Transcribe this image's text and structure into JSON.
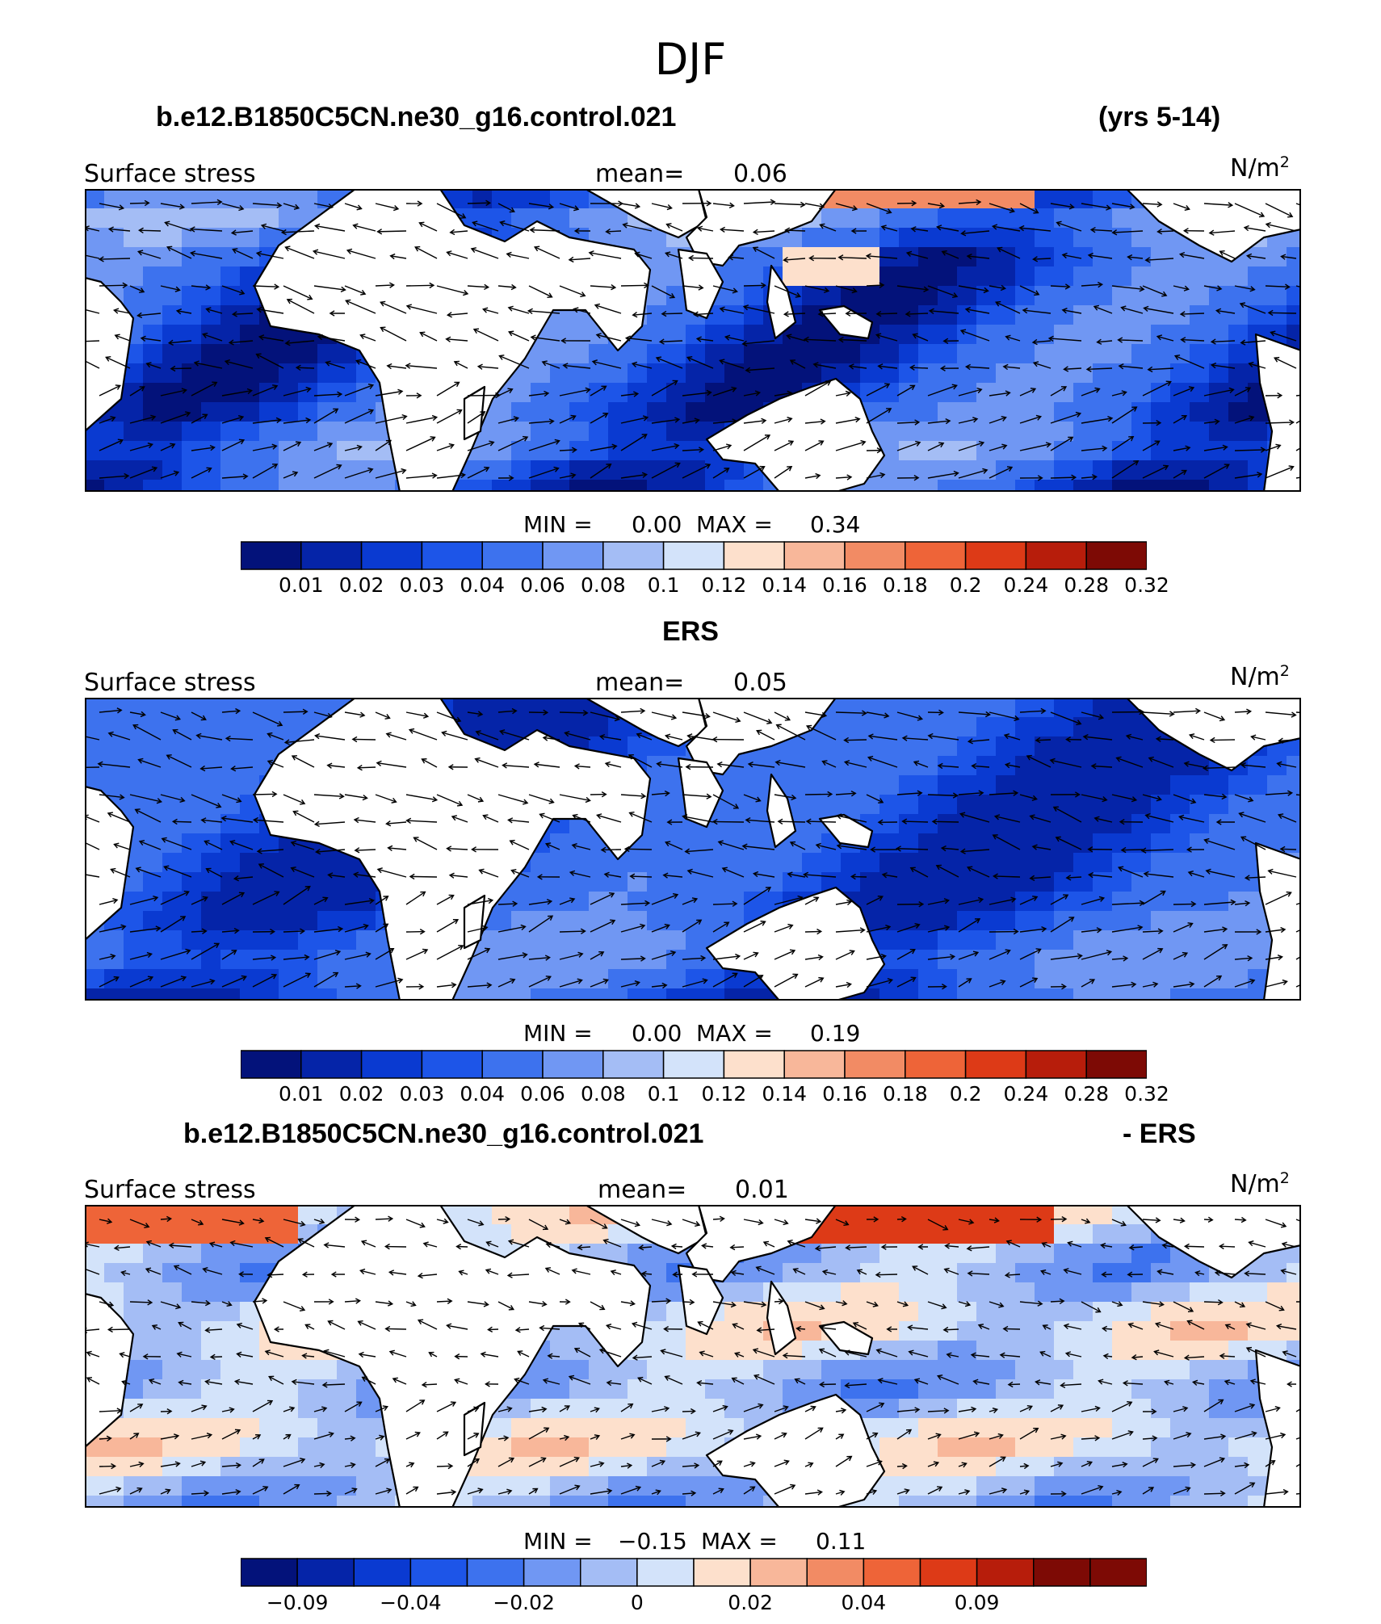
{
  "title": "DJF",
  "panels": [
    {
      "header_left": "b.e12.B1850C5CN.ne30_g16.control.021",
      "header_right": "(yrs 5-14)",
      "variable": "Surface stress",
      "mean_label": "mean=",
      "mean_value": "0.06",
      "units": "N/m",
      "units_sup": "2",
      "min_label": "MIN =",
      "min_value": "0.00",
      "max_label": "MAX =",
      "max_value": "0.34",
      "colorbar_labels": [
        "0.01",
        "0.02",
        "0.03",
        "0.04",
        "0.06",
        "0.08",
        "0.1",
        "0.12",
        "0.14",
        "0.16",
        "0.18",
        "0.2",
        "0.24",
        "0.28",
        "0.32"
      ],
      "colors": [
        "#03127a",
        "#0524a8",
        "#0a3ad1",
        "#1d55e8",
        "#3d72ee",
        "#7097f3",
        "#a4bdf5",
        "#d3e3fa",
        "#fde0cc",
        "#f8b79a",
        "#f28b64",
        "#ee6438",
        "#dd3a17",
        "#b71d0b",
        "#7d0a05"
      ],
      "field": "abs"
    },
    {
      "header_left": "ERS",
      "header_right": "",
      "variable": "Surface stress",
      "mean_label": "mean=",
      "mean_value": "0.05",
      "units": "N/m",
      "units_sup": "2",
      "min_label": "MIN =",
      "min_value": "0.00",
      "max_label": "MAX =",
      "max_value": "0.19",
      "colorbar_labels": [
        "0.01",
        "0.02",
        "0.03",
        "0.04",
        "0.06",
        "0.08",
        "0.1",
        "0.12",
        "0.14",
        "0.16",
        "0.18",
        "0.2",
        "0.24",
        "0.28",
        "0.32"
      ],
      "colors": [
        "#03127a",
        "#0524a8",
        "#0a3ad1",
        "#1d55e8",
        "#3d72ee",
        "#7097f3",
        "#a4bdf5",
        "#d3e3fa",
        "#fde0cc",
        "#f8b79a",
        "#f28b64",
        "#ee6438",
        "#dd3a17",
        "#b71d0b",
        "#7d0a05"
      ],
      "field": "obs"
    },
    {
      "header_left": "b.e12.B1850C5CN.ne30_g16.control.021",
      "header_right": "- ERS",
      "variable": "Surface stress",
      "mean_label": "mean=",
      "mean_value": "0.01",
      "units": "N/m",
      "units_sup": "2",
      "min_label": "MIN =",
      "min_value": "−0.15",
      "max_label": "MAX =",
      "max_value": "0.11",
      "colorbar_labels": [
        "−0.09",
        "−0.04",
        "−0.02",
        "0",
        "0.02",
        "0.04",
        "0.09"
      ],
      "colors": [
        "#03127a",
        "#0524a8",
        "#0a3ad1",
        "#1d55e8",
        "#3d72ee",
        "#7097f3",
        "#a4bdf5",
        "#d3e3fa",
        "#fde0cc",
        "#f8b79a",
        "#f28b64",
        "#ee6438",
        "#dd3a17",
        "#b71d0b",
        "#7d0a05",
        "#7d0a05"
      ],
      "field": "diff"
    }
  ]
}
